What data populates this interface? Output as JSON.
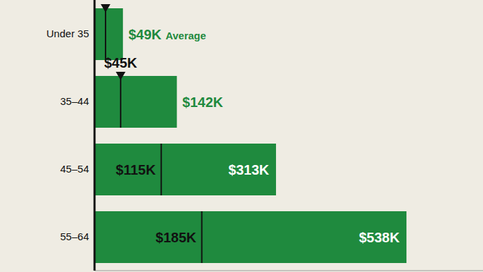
{
  "chart_data": {
    "type": "bar",
    "orientation": "horizontal",
    "categories": [
      "Under 35",
      "35–44",
      "45–54",
      "55–64"
    ],
    "series": [
      {
        "name": "Average",
        "color": "#1f8a3e",
        "values": [
          49,
          142,
          313,
          538
        ],
        "value_labels": [
          "$49K",
          "$142K",
          "$313K",
          "$538K"
        ]
      }
    ],
    "medians": [
      19,
      45,
      115,
      185
    ],
    "median_labels": [
      null,
      "$45K",
      "$115K",
      "$185K"
    ],
    "annotation": {
      "text": "Average",
      "category": "Under 35"
    },
    "xlim": [
      0,
      670
    ],
    "data_labels": true,
    "tick_labels": "y"
  }
}
